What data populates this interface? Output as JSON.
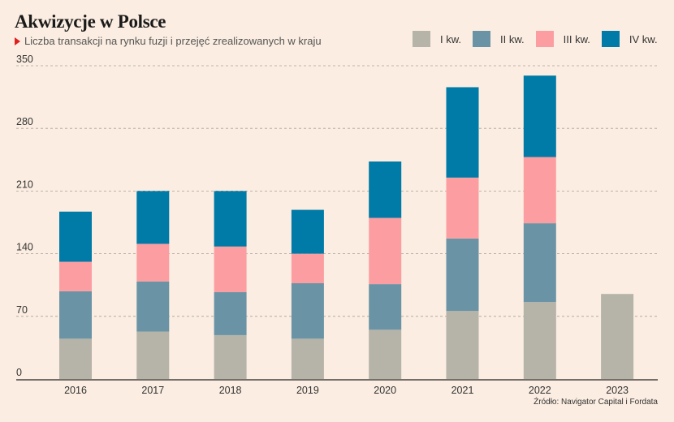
{
  "header": {
    "title": "Akwizycje w Polsce",
    "subtitle": "Liczba transakcji na rynku fuzji i przejęć zrealizowanych w kraju"
  },
  "source": "Źródło: Navigator Capital i Fordata",
  "colors": {
    "background": "#fbede1",
    "q1": "#b6b3a8",
    "q2": "#6a94a6",
    "q3": "#fc9ea1",
    "q4": "#007aa6",
    "accent": "#e02020"
  },
  "chart_data": {
    "type": "bar",
    "stacked": true,
    "categories": [
      "2016",
      "2017",
      "2018",
      "2019",
      "2020",
      "2021",
      "2022",
      "2023"
    ],
    "series": [
      {
        "name": "I kw.",
        "values": [
          45,
          53,
          49,
          45,
          55,
          76,
          86,
          95
        ]
      },
      {
        "name": "II kw.",
        "values": [
          53,
          56,
          48,
          62,
          51,
          81,
          88,
          null
        ]
      },
      {
        "name": "III kw.",
        "values": [
          33,
          42,
          51,
          33,
          74,
          68,
          74,
          null
        ]
      },
      {
        "name": "IV kw.",
        "values": [
          56,
          59,
          62,
          49,
          63,
          101,
          91,
          null
        ]
      }
    ],
    "y_ticks": [
      0,
      70,
      140,
      210,
      280,
      350
    ],
    "ylim": [
      0,
      350
    ],
    "grid": true,
    "legend_position": "top-right"
  }
}
